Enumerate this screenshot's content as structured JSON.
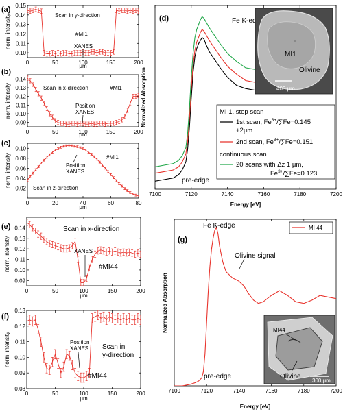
{
  "chart_data": [
    {
      "id": "a",
      "panel_label": "(a)",
      "type": "line",
      "title": "Scan in y-direction",
      "annotations": [
        "#MI1",
        "XANES"
      ],
      "xlabel": "μm",
      "ylabel": "norm. intensity",
      "xlim": [
        0,
        200
      ],
      "ylim": [
        0.095,
        0.15
      ],
      "xticks": [
        0,
        50,
        100,
        150,
        200
      ],
      "yticks": [
        0.1,
        0.11,
        0.12,
        0.13,
        0.14,
        0.15
      ],
      "ytick_labels": [
        "0.10",
        "0.11",
        "0.12",
        "0.13",
        "0.14",
        "0.15"
      ],
      "series": [
        {
          "color": "#e8332c",
          "x": [
            0,
            5,
            10,
            15,
            20,
            25,
            30,
            35,
            40,
            45,
            50,
            55,
            60,
            65,
            70,
            75,
            80,
            85,
            90,
            95,
            100,
            105,
            110,
            115,
            120,
            125,
            130,
            135,
            140,
            145,
            150,
            155,
            160,
            165,
            170,
            175,
            180,
            185,
            190,
            195,
            200
          ],
          "y": [
            0.145,
            0.144,
            0.145,
            0.146,
            0.145,
            0.144,
            0.1,
            0.099,
            0.099,
            0.1,
            0.099,
            0.1,
            0.099,
            0.1,
            0.1,
            0.099,
            0.099,
            0.1,
            0.1,
            0.1,
            0.101,
            0.1,
            0.1,
            0.101,
            0.101,
            0.1,
            0.101,
            0.101,
            0.1,
            0.1,
            0.1,
            0.101,
            0.145,
            0.144,
            0.145,
            0.145,
            0.144,
            0.145,
            0.144,
            0.145,
            0.144
          ],
          "err": 0.0025
        }
      ]
    },
    {
      "id": "b",
      "panel_label": "(b)",
      "type": "line",
      "title": "Scan in x-direction",
      "annotations": [
        "#MI1",
        "Position",
        "XANES"
      ],
      "xlabel": "μm",
      "ylabel": "norm. intensity",
      "xlim": [
        0,
        200
      ],
      "ylim": [
        0.085,
        0.145
      ],
      "xticks": [
        0,
        50,
        100,
        150,
        200
      ],
      "yticks": [
        0.09,
        0.1,
        0.11,
        0.12,
        0.13,
        0.14
      ],
      "ytick_labels": [
        "0.09",
        "0.10",
        "0.11",
        "0.12",
        "0.13",
        "0.14"
      ],
      "series": [
        {
          "color": "#e8332c",
          "x": [
            0,
            5,
            10,
            15,
            20,
            25,
            30,
            35,
            40,
            45,
            50,
            55,
            60,
            65,
            70,
            75,
            80,
            85,
            90,
            95,
            100,
            105,
            110,
            115,
            120,
            125,
            130,
            135,
            140,
            145,
            150,
            155,
            160,
            165,
            170,
            175,
            180,
            185,
            190,
            195,
            200
          ],
          "y": [
            0.141,
            0.138,
            0.134,
            0.128,
            0.123,
            0.118,
            0.112,
            0.106,
            0.1,
            0.096,
            0.092,
            0.09,
            0.089,
            0.089,
            0.088,
            0.088,
            0.089,
            0.089,
            0.088,
            0.089,
            0.089,
            0.088,
            0.088,
            0.089,
            0.088,
            0.088,
            0.089,
            0.089,
            0.088,
            0.089,
            0.089,
            0.089,
            0.09,
            0.091,
            0.093,
            0.097,
            0.104,
            0.112,
            0.12,
            0.12,
            0.121
          ],
          "err": 0.0025
        }
      ]
    },
    {
      "id": "c",
      "panel_label": "(c)",
      "type": "line",
      "title": "Scan in z-direction",
      "annotations": [
        "#MI1",
        "Position",
        "XANES"
      ],
      "xlabel": "μm",
      "ylabel": "norm. intensity",
      "xlim": [
        0,
        80
      ],
      "ylim": [
        0.0,
        0.11
      ],
      "xticks": [
        0,
        20,
        40,
        60,
        80
      ],
      "yticks": [
        0.02,
        0.04,
        0.06,
        0.08,
        0.1
      ],
      "ytick_labels": [
        "0.02",
        "0.04",
        "0.06",
        "0.08",
        "0.10"
      ],
      "series": [
        {
          "color": "#e8332c",
          "x": [
            0,
            2,
            4,
            6,
            8,
            10,
            12,
            14,
            16,
            18,
            20,
            22,
            24,
            26,
            28,
            30,
            32,
            34,
            36,
            38,
            40,
            42,
            44,
            46,
            48,
            50,
            52,
            54,
            56,
            58,
            60,
            62,
            64,
            66,
            68,
            70,
            72,
            74,
            76,
            78,
            80
          ],
          "y": [
            0.036,
            0.043,
            0.05,
            0.057,
            0.063,
            0.07,
            0.076,
            0.082,
            0.087,
            0.092,
            0.096,
            0.099,
            0.102,
            0.104,
            0.105,
            0.105,
            0.105,
            0.104,
            0.103,
            0.101,
            0.099,
            0.096,
            0.092,
            0.088,
            0.083,
            0.078,
            0.072,
            0.066,
            0.06,
            0.053,
            0.047,
            0.041,
            0.035,
            0.029,
            0.024,
            0.019,
            0.015,
            0.011,
            0.008,
            0.006,
            0.004
          ],
          "err": 0.002
        }
      ]
    },
    {
      "id": "d",
      "panel_label": "(d)",
      "type": "line",
      "annotations": [
        "Fe K-edge",
        "pre-edge",
        "MI1",
        "Olivine",
        "400 μm"
      ],
      "xlabel": "Energy [eV]",
      "ylabel": "Normalized Absorption",
      "xlim": [
        7100,
        7200
      ],
      "xticks": [
        7100,
        7120,
        7140,
        7160,
        7180,
        7200
      ],
      "legend": {
        "title": "MI 1, step scan",
        "items": [
          {
            "label": "1st scan, Fe",
            "suffix": "/∑Fe=0.145",
            "line2": "+2μm",
            "color": "#000000"
          },
          {
            "label": "2nd scan, Fe",
            "suffix": "/∑Fe=0.151",
            "color": "#e8332c"
          }
        ],
        "subtitle": "continuous scan",
        "cont": {
          "label": "20 scans with Δz 1 μm,",
          "line2": "Fe",
          "suffix": "/∑Fe=0.123",
          "color": "#22a84a"
        },
        "superscript": "3+"
      },
      "series": [
        {
          "name": "1st scan",
          "color": "#000000",
          "x": [
            7100,
            7105,
            7110,
            7113,
            7115,
            7117,
            7118,
            7119,
            7120,
            7121,
            7122,
            7123,
            7124,
            7125,
            7126,
            7127,
            7128,
            7130,
            7133,
            7136,
            7140,
            7145,
            7150,
            7155
          ],
          "y": [
            0.0,
            0.01,
            0.02,
            0.04,
            0.07,
            0.12,
            0.2,
            0.34,
            0.52,
            0.68,
            0.78,
            0.83,
            0.86,
            0.88,
            0.9,
            0.89,
            0.86,
            0.81,
            0.76,
            0.71,
            0.65,
            0.6,
            0.58,
            0.57
          ]
        },
        {
          "name": "2nd scan",
          "color": "#e8332c",
          "x": [
            7100,
            7105,
            7110,
            7113,
            7115,
            7117,
            7118,
            7119,
            7120,
            7121,
            7122,
            7123,
            7124,
            7125,
            7126,
            7127,
            7128,
            7130,
            7133,
            7136,
            7140,
            7145,
            7150,
            7155
          ],
          "y": [
            0.05,
            0.06,
            0.07,
            0.09,
            0.12,
            0.17,
            0.25,
            0.4,
            0.58,
            0.73,
            0.82,
            0.87,
            0.9,
            0.93,
            0.95,
            0.94,
            0.92,
            0.88,
            0.83,
            0.78,
            0.72,
            0.67,
            0.63,
            0.62
          ]
        },
        {
          "name": "continuous",
          "color": "#22a84a",
          "x": [
            7100,
            7105,
            7110,
            7113,
            7115,
            7117,
            7118,
            7119,
            7120,
            7121,
            7122,
            7123,
            7124,
            7125,
            7126,
            7127,
            7128,
            7130,
            7133,
            7136,
            7140,
            7145,
            7150,
            7155
          ],
          "y": [
            0.09,
            0.1,
            0.11,
            0.13,
            0.16,
            0.21,
            0.3,
            0.46,
            0.65,
            0.8,
            0.9,
            0.95,
            0.98,
            1.01,
            1.03,
            1.02,
            1.0,
            0.96,
            0.91,
            0.86,
            0.8,
            0.75,
            0.71,
            0.7
          ]
        }
      ]
    },
    {
      "id": "e",
      "panel_label": "(e)",
      "type": "line",
      "title": "Scan in x-direction",
      "annotations": [
        "XANES",
        "#MI44"
      ],
      "xlabel": "μm",
      "ylabel": "norm. intensity",
      "xlim": [
        0,
        200
      ],
      "ylim": [
        0.085,
        0.15
      ],
      "xticks": [
        0,
        50,
        100,
        150,
        200
      ],
      "yticks": [
        0.09,
        0.1,
        0.11,
        0.12,
        0.13,
        0.14
      ],
      "ytick_labels": [
        "0.09",
        "0.10",
        "0.11",
        "0.12",
        "0.13",
        "0.14"
      ],
      "series": [
        {
          "color": "#e8332c",
          "x": [
            0,
            5,
            10,
            15,
            20,
            25,
            30,
            35,
            40,
            45,
            50,
            55,
            60,
            65,
            70,
            75,
            80,
            85,
            90,
            95,
            100,
            105,
            110,
            115,
            120,
            125,
            130,
            135,
            140,
            145,
            150,
            155,
            160,
            165,
            170,
            175,
            180,
            185,
            190,
            195,
            200
          ],
          "y": [
            0.145,
            0.143,
            0.14,
            0.137,
            0.134,
            0.132,
            0.129,
            0.127,
            0.125,
            0.124,
            0.123,
            0.122,
            0.121,
            0.12,
            0.12,
            0.121,
            0.123,
            0.127,
            0.11,
            0.088,
            0.088,
            0.092,
            0.102,
            0.11,
            0.115,
            0.118,
            0.119,
            0.118,
            0.117,
            0.118,
            0.117,
            0.118,
            0.117,
            0.116,
            0.117,
            0.116,
            0.117,
            0.116,
            0.115,
            0.116,
            0.115
          ],
          "err": 0.003
        }
      ]
    },
    {
      "id": "f",
      "panel_label": "(f)",
      "type": "line",
      "title": "Scan in y-direction",
      "annotations": [
        "Position",
        "XANES",
        "#MI44"
      ],
      "xlabel": "μm",
      "ylabel": "norm. intensity",
      "xlim": [
        0,
        200
      ],
      "ylim": [
        0.08,
        0.13
      ],
      "xticks": [
        0,
        50,
        100,
        150,
        200
      ],
      "yticks": [
        0.08,
        0.09,
        0.1,
        0.11,
        0.12,
        0.13
      ],
      "ytick_labels": [
        "0.08",
        "0.09",
        "0.10",
        "0.11",
        "0.12",
        "0.13"
      ],
      "series": [
        {
          "color": "#e8332c",
          "x": [
            0,
            5,
            10,
            15,
            20,
            25,
            30,
            35,
            40,
            45,
            50,
            55,
            60,
            65,
            70,
            75,
            80,
            85,
            90,
            95,
            100,
            105,
            110,
            115,
            120,
            125,
            130,
            135,
            140,
            145,
            150,
            155,
            160,
            165,
            170,
            175,
            180,
            185,
            190,
            195,
            200
          ],
          "y": [
            0.123,
            0.124,
            0.123,
            0.124,
            0.118,
            0.11,
            0.1,
            0.093,
            0.092,
            0.097,
            0.102,
            0.096,
            0.09,
            0.094,
            0.102,
            0.101,
            0.095,
            0.09,
            0.088,
            0.087,
            0.087,
            0.088,
            0.09,
            0.125,
            0.126,
            0.127,
            0.125,
            0.126,
            0.124,
            0.126,
            0.125,
            0.124,
            0.125,
            0.124,
            0.125,
            0.124,
            0.125,
            0.124,
            0.124,
            0.125,
            0.124
          ],
          "err": 0.003
        }
      ]
    },
    {
      "id": "g",
      "panel_label": "(g)",
      "type": "line",
      "annotations": [
        "Fe K-edge",
        "Olivine signal",
        "pre-edge",
        "MI44",
        "Olivine",
        "300 μm"
      ],
      "xlabel": "Energy [eV]",
      "ylabel": "Normalized Absorption",
      "xlim": [
        7100,
        7200
      ],
      "ylim": [
        0,
        1.05
      ],
      "xticks": [
        7100,
        7120,
        7140,
        7160,
        7180,
        7200
      ],
      "legend": {
        "items": [
          {
            "label": "MI 44",
            "color": "#e8332c"
          }
        ]
      },
      "series": [
        {
          "name": "MI 44",
          "color": "#e8332c",
          "x": [
            7100,
            7105,
            7110,
            7113,
            7115,
            7117,
            7118,
            7119,
            7120,
            7121,
            7122,
            7123,
            7124,
            7125,
            7126,
            7127,
            7128,
            7130,
            7132,
            7134,
            7136,
            7138,
            7140,
            7143,
            7146,
            7149,
            7152,
            7155,
            7160,
            7165,
            7170,
            7175,
            7180,
            7185,
            7190,
            7195,
            7200
          ],
          "y": [
            0.0,
            0.0,
            0.01,
            0.02,
            0.03,
            0.05,
            0.09,
            0.2,
            0.4,
            0.6,
            0.75,
            0.86,
            0.93,
            0.98,
            1.0,
            0.96,
            0.88,
            0.78,
            0.72,
            0.7,
            0.68,
            0.67,
            0.66,
            0.63,
            0.58,
            0.54,
            0.52,
            0.53,
            0.57,
            0.6,
            0.57,
            0.53,
            0.52,
            0.54,
            0.57,
            0.56,
            0.55
          ]
        }
      ]
    }
  ]
}
